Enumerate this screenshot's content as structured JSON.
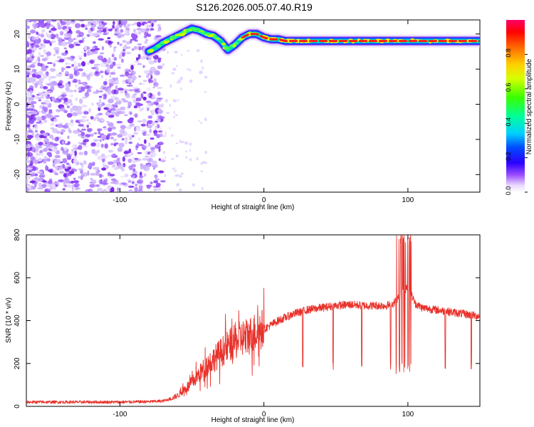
{
  "title": "S126.2026.005.07.40.R19",
  "chart_data": [
    {
      "type": "heatmap",
      "xlabel": "Height of straight line (km)",
      "ylabel": "Frequency (Hz)",
      "xlim": [
        -165,
        150
      ],
      "ylim": [
        -25,
        24
      ],
      "xticks": [
        -100,
        0,
        100
      ],
      "yticks": [
        -20,
        -10,
        0,
        10,
        20
      ],
      "noise_region_x": [
        -165,
        -70
      ],
      "signal_start_x": -80,
      "signal_line": {
        "x": [
          -80,
          -75,
          -70,
          -65,
          -60,
          -55,
          -50,
          -45,
          -40,
          -35,
          -30,
          -25,
          -20,
          -15,
          -10,
          -5,
          0,
          5,
          10,
          15,
          20,
          25,
          30,
          40,
          50,
          60,
          70,
          80,
          90,
          100,
          110,
          120,
          130,
          140,
          150
        ],
        "y": [
          15.0,
          16.0,
          17.5,
          18.5,
          19.5,
          20.5,
          21.5,
          21.0,
          20.0,
          19.5,
          18.0,
          15.5,
          17.0,
          19.0,
          20.0,
          20.0,
          19.0,
          18.5,
          18.5,
          18.0,
          18.0,
          18.0,
          18.0,
          18.0,
          18.0,
          18.0,
          18.0,
          18.0,
          18.0,
          18.0,
          18.0,
          18.0,
          18.0,
          18.0,
          18.0
        ]
      },
      "colorbar": {
        "label": "Normalized spectral amplitude",
        "range": [
          0,
          1
        ],
        "ticks": [
          "0.0",
          "0.2",
          "0.4",
          "0.6",
          "0.8"
        ],
        "tick_values": [
          0,
          0.2,
          0.4,
          0.6,
          0.8
        ]
      }
    },
    {
      "type": "line",
      "xlabel": "Height of straight line (km)",
      "ylabel": "SNR (10 * v/v)",
      "xlim": [
        -165,
        150
      ],
      "ylim": [
        0,
        800
      ],
      "xticks": [
        -100,
        0,
        100
      ],
      "yticks": [
        0,
        200,
        400,
        600,
        800
      ],
      "color": "#e8322b",
      "series": [
        {
          "name": "SNR",
          "x": [
            -165,
            -140,
            -120,
            -100,
            -80,
            -70,
            -65,
            -60,
            -55,
            -50,
            -45,
            -40,
            -35,
            -30,
            -25,
            -20,
            -15,
            -10,
            -5,
            0,
            5,
            10,
            20,
            30,
            40,
            50,
            60,
            70,
            80,
            85,
            90,
            95,
            100,
            105,
            110,
            120,
            130,
            140,
            150
          ],
          "y": [
            20,
            20,
            20,
            20,
            22,
            25,
            35,
            50,
            80,
            110,
            150,
            190,
            220,
            250,
            280,
            300,
            320,
            330,
            350,
            360,
            380,
            400,
            430,
            450,
            460,
            470,
            475,
            470,
            470,
            470,
            480,
            520,
            560,
            480,
            460,
            450,
            440,
            430,
            420
          ]
        }
      ],
      "dropouts_x": [
        27,
        48,
        68,
        88,
        126,
        144
      ],
      "spikes_x": [
        92,
        94,
        95,
        96,
        97,
        98,
        100,
        101,
        102
      ]
    }
  ]
}
